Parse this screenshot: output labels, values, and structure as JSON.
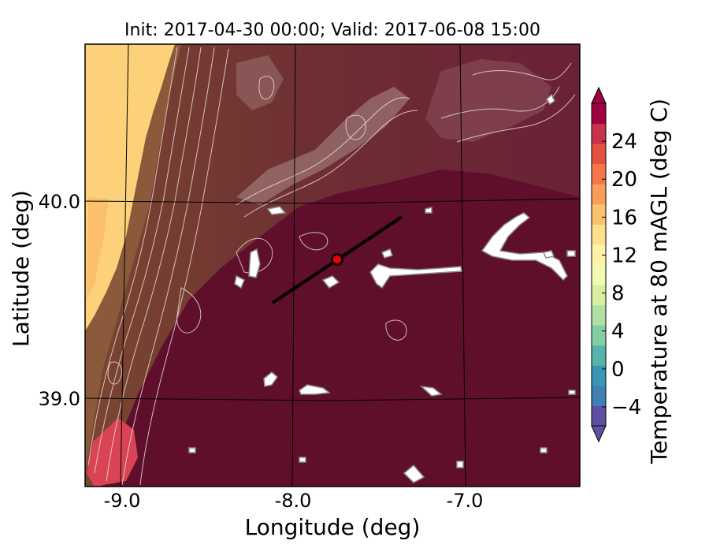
{
  "map": {
    "title": "Init: 2017-04-30 00:00; Valid: 2017-06-08 15:00",
    "xlabel": "Longitude (deg)",
    "ylabel": "Latitude (deg)",
    "x_ticks": [
      "-9.0",
      "-8.0",
      "-7.0"
    ],
    "y_ticks": [
      "40.0",
      "39.0"
    ]
  },
  "colorbar": {
    "label": "Temperature at 80 mAGL (deg C)",
    "ticks": [
      "−4",
      "0",
      "4",
      "8",
      "12",
      "16",
      "20",
      "24"
    ],
    "colors": [
      "#5e4fa2",
      "#3f7fb6",
      "#3b96b6",
      "#58b4ab",
      "#83cfa4",
      "#b1e0a2",
      "#d8ef9e",
      "#f2f9b1",
      "#fff3aa",
      "#fee08b",
      "#fdc06f",
      "#fb9d59",
      "#f57748",
      "#e3523f",
      "#c9324a",
      "#9e0142"
    ]
  },
  "colors": {
    "land_deep": "#5f0f2c",
    "land_mid": "#7a2f3c",
    "land_warm": "#8b5a3a",
    "ocean": "#fdd17a",
    "hot_spot": "#d94455",
    "contour": "#e8d8d8",
    "marker": "#e60000"
  },
  "chart_data": {
    "type": "heatmap",
    "variable": "Temperature at 80 mAGL (deg C)",
    "init": "2017-04-30 00:00",
    "valid": "2017-06-08 15:00",
    "xlim": [
      -9.25,
      -6.35
    ],
    "ylim": [
      38.55,
      40.8
    ],
    "x_ticks": [
      -9.0,
      -8.0,
      -7.0
    ],
    "y_ticks": [
      40.0,
      39.0
    ],
    "color_range": [
      -6,
      28
    ],
    "colorbar_ticks": [
      -4,
      0,
      4,
      8,
      12,
      16,
      20,
      24
    ],
    "transect_line": {
      "start": [
        -8.12,
        39.48
      ],
      "end": [
        -7.36,
        39.93
      ]
    },
    "marker_point": [
      -7.75,
      39.7
    ]
  }
}
